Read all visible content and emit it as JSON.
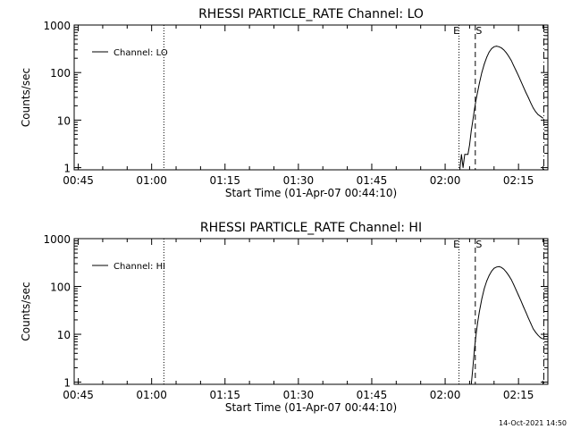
{
  "chart_data": [
    {
      "type": "line",
      "title": "RHESSI PARTICLE_RATE Channel: LO",
      "xlabel": "Start Time (01-Apr-07 00:44:10)",
      "ylabel": "Counts/sec",
      "y_scale": "log",
      "ylim": [
        0.9,
        1000
      ],
      "xlim": [
        "00:44:10",
        "02:21:00"
      ],
      "x_ticks": [
        "00:45",
        "01:00",
        "01:15",
        "01:30",
        "01:45",
        "02:00",
        "02:15"
      ],
      "y_ticks": [
        "1",
        "10",
        "100",
        "1000"
      ],
      "legend": {
        "position": "top-left",
        "entries": [
          "Channel: LO"
        ]
      },
      "series": [
        {
          "name": "Channel: LO",
          "x": [
            "02:03:00",
            "02:03:20",
            "02:03:40",
            "02:04:00",
            "02:04:40",
            "02:05:00",
            "02:05:20",
            "02:05:40",
            "02:06:00",
            "02:06:20",
            "02:06:40",
            "02:07:00",
            "02:07:30",
            "02:08:00",
            "02:08:30",
            "02:09:00",
            "02:09:30",
            "02:10:00",
            "02:10:30",
            "02:11:00",
            "02:11:30",
            "02:12:00",
            "02:12:30",
            "02:13:00",
            "02:13:30",
            "02:14:00",
            "02:14:30",
            "02:15:00",
            "02:15:30",
            "02:16:00",
            "02:16:30",
            "02:17:00",
            "02:17:30",
            "02:18:00",
            "02:18:30",
            "02:19:00",
            "02:19:30",
            "02:20:00"
          ],
          "values": [
            0.9,
            1.9,
            1,
            1.9,
            1.9,
            3,
            6,
            10,
            17,
            27,
            40,
            60,
            100,
            150,
            210,
            270,
            320,
            350,
            360,
            350,
            330,
            300,
            260,
            220,
            180,
            140,
            110,
            85,
            65,
            50,
            38,
            30,
            23,
            18,
            15,
            13,
            12,
            11
          ]
        }
      ],
      "markers": [
        {
          "label": "",
          "time": "01:02:30",
          "style": "dotted"
        },
        {
          "label": "E",
          "time": "02:02:50",
          "style": "dotted"
        },
        {
          "label": "S",
          "time": "02:06:10",
          "style": "dashed"
        },
        {
          "label": "",
          "time": "02:20:10",
          "style": "dash-dot"
        }
      ]
    },
    {
      "type": "line",
      "title": "RHESSI PARTICLE_RATE Channel: HI",
      "xlabel": "Start Time (01-Apr-07 00:44:10)",
      "ylabel": "Counts/sec",
      "y_scale": "log",
      "ylim": [
        0.9,
        1000
      ],
      "xlim": [
        "00:44:10",
        "02:21:00"
      ],
      "x_ticks": [
        "00:45",
        "01:00",
        "01:15",
        "01:30",
        "01:45",
        "02:00",
        "02:15"
      ],
      "y_ticks": [
        "1",
        "10",
        "100",
        "1000"
      ],
      "legend": {
        "position": "top-left",
        "entries": [
          "Channel: HI"
        ]
      },
      "series": [
        {
          "name": "Channel: HI",
          "x": [
            "02:05:20",
            "02:05:40",
            "02:06:00",
            "02:06:20",
            "02:06:40",
            "02:07:00",
            "02:07:30",
            "02:08:00",
            "02:08:30",
            "02:09:00",
            "02:09:30",
            "02:10:00",
            "02:10:30",
            "02:11:00",
            "02:11:30",
            "02:12:00",
            "02:12:30",
            "02:13:00",
            "02:13:30",
            "02:14:00",
            "02:14:30",
            "02:15:00",
            "02:15:30",
            "02:16:00",
            "02:16:30",
            "02:17:00",
            "02:17:30",
            "02:18:00",
            "02:18:30",
            "02:19:00",
            "02:19:30",
            "02:20:00"
          ],
          "values": [
            0.9,
            2,
            5,
            10,
            18,
            30,
            55,
            90,
            130,
            170,
            210,
            240,
            255,
            260,
            250,
            230,
            200,
            170,
            140,
            110,
            85,
            65,
            50,
            38,
            29,
            22,
            17,
            13,
            11,
            9.5,
            8.5,
            8
          ]
        }
      ],
      "markers": [
        {
          "label": "",
          "time": "01:02:30",
          "style": "dotted"
        },
        {
          "label": "E",
          "time": "02:02:50",
          "style": "dotted"
        },
        {
          "label": "S",
          "time": "02:06:10",
          "style": "dashed"
        },
        {
          "label": "",
          "time": "02:20:10",
          "style": "dash-dot"
        }
      ]
    }
  ],
  "footer": {
    "timestamp": "14-Oct-2021 14:50"
  }
}
